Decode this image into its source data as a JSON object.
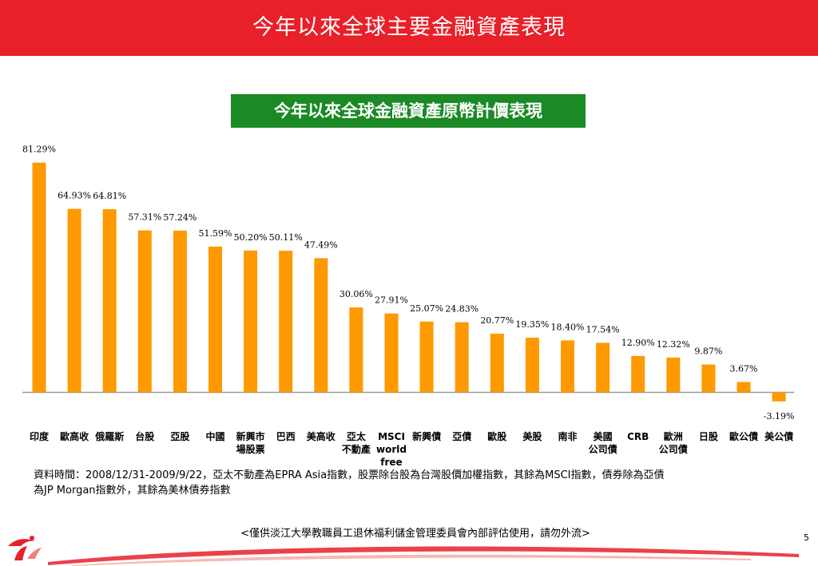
{
  "header": {
    "title": "今年以來全球主要金融資產表現"
  },
  "chart_title": "今年以來全球金融資產原幣計價表現",
  "chart_data": {
    "type": "bar",
    "title": "今年以來全球金融資產原幣計價表現",
    "categories": [
      "印度",
      "歐高收",
      "俄羅斯",
      "台股",
      "亞股",
      "中國",
      "新興市場股票",
      "巴西",
      "美高收",
      "亞太不動產",
      "MSCI world free",
      "新興債",
      "亞債",
      "歐股",
      "美股",
      "南非",
      "美國公司債",
      "CRB",
      "歐洲公司債",
      "日股",
      "歐公債",
      "美公債"
    ],
    "category_lines": [
      [
        "印度"
      ],
      [
        "歐高收"
      ],
      [
        "俄羅斯"
      ],
      [
        "台股"
      ],
      [
        "亞股"
      ],
      [
        "中國"
      ],
      [
        "新興市",
        "場股票"
      ],
      [
        "巴西"
      ],
      [
        "美高收"
      ],
      [
        "亞太",
        "不動產"
      ],
      [
        "MSCI",
        "world",
        "free"
      ],
      [
        "新興債"
      ],
      [
        "亞債"
      ],
      [
        "歐股"
      ],
      [
        "美股"
      ],
      [
        "南非"
      ],
      [
        "美國",
        "公司債"
      ],
      [
        "CRB"
      ],
      [
        "歐洲",
        "公司債"
      ],
      [
        "日股"
      ],
      [
        "歐公債"
      ],
      [
        "美公債"
      ]
    ],
    "values": [
      81.29,
      64.93,
      64.81,
      57.31,
      57.24,
      51.59,
      50.2,
      50.11,
      47.49,
      30.06,
      27.91,
      25.07,
      24.83,
      20.77,
      19.35,
      18.4,
      17.54,
      12.9,
      12.32,
      9.87,
      3.67,
      -3.19
    ],
    "labels": [
      "81.29%",
      "64.93%",
      "64.81%",
      "57.31%",
      "57.24%",
      "51.59%",
      "50.20%",
      "50.11%",
      "47.49%",
      "30.06%",
      "27.91%",
      "25.07%",
      "24.83%",
      "20.77%",
      "19.35%",
      "18.40%",
      "17.54%",
      "12.90%",
      "12.32%",
      "9.87%",
      "3.67%",
      "-3.19%"
    ],
    "bar_color": "#ff9900"
  },
  "note": {
    "line1": "資料時間：2008/12/31-2009/9/22，亞太不動產為EPRA Asia指數，股票除台股為台灣股價加權指數，其餘為MSCI指數，債券除為亞債",
    "line2": "為JP Morgan指數外，其餘為美林債券指數"
  },
  "footer": {
    "text": "<僅供淡江大學教職員工退休福利儲金管理委員會內部評估使用，請勿外流>",
    "page": "5"
  },
  "colors": {
    "header": "#e8202a",
    "title_box": "#1a8a24",
    "bar": "#ff9900"
  }
}
